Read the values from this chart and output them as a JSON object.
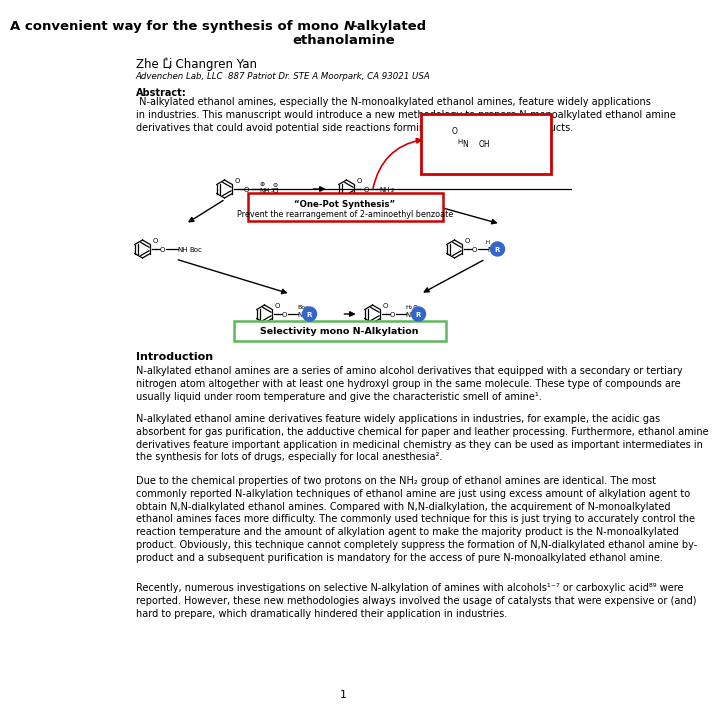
{
  "bg_color": "#ffffff",
  "text_color": "#000000",
  "title1": "A convenient way for the synthesis of mono ",
  "title1_italic": "N",
  "title1_rest": "-alkylated",
  "title2": "ethanolamine",
  "author_pre": "Zhe Li",
  "author_star": "*",
  "author_post": ", Changren Yan",
  "affiliation": "Advenchen Lab, LLC  887 Patriot Dr. STE A Moorpark, CA 93021 USA",
  "abstract_bold": "Abstract:",
  "abstract_text": " N-alkylated ethanol amines, especially the N-monoalkylated ethanol amines, feature widely applications in industries. This manuscript would introduce a new methodology to prepare N-monoalkylated ethanol amine derivatives that could avoid potential side reactions forming N,N-dialkylated by-products.",
  "intro_heading": "Introduction",
  "intro_p1": "N-alkylated ethanol amines are a series of amino alcohol derivatives that equipped with a secondary or tertiary nitrogen atom altogether with at least one hydroxyl group in the same molecule. These type of compounds are usually liquid under room temperature and give the characteristic smell of amine¹.",
  "intro_p2": "N-alkylated ethanol amine derivatives feature widely applications in industries, for example, the acidic gas absorbent for gas purification, the adductive chemical for paper and leather processing. Furthermore, ethanol amine derivatives feature important application in medicinal chemistry as they can be used as important intermediates in the synthesis for lots of drugs, especially for local anesthesia².",
  "intro_p3": "Due to the chemical properties of two protons on the NH₂ group of ethanol amines are identical. The most commonly reported N-alkylation techniques of ethanol amine are just using excess amount of alkylation agent to obtain N,N-dialkylated ethanol amines. Compared with N,N-dialkylation, the acquirement of N-monoalkylated ethanol amines faces more difficulty. The commonly used technique for this is just trying to accurately control the reaction temperature and the amount of alkylation agent to make the majority product is the N-monoalkylated product. Obviously, this technique cannot completely suppress the formation of N,N-dialkylated ethanol amine by-product and a subsequent purification is mandatory for the access of pure N-monoalkylated ethanol amine.",
  "intro_p4": "Recently, numerous investigations on selective N-alkylation of amines with alcohols¹⁻⁷ or carboxylic acid⁸⁹ were reported. However, these new methodologies always involved the usage of catalysts that were expensive or (and) hard to prepare, which dramatically hindered their application in industries.",
  "page_num": "1",
  "red_box_color": "#cc0000",
  "green_box_color": "#5cb85c",
  "blue_circle_color": "#3366cc",
  "onepot_line1": "“One-Pot Synthesis”",
  "onepot_line2": "Prevent the rearrangement of 2-aminoethyl benzoate",
  "selectivity_label": "Selectivity mono N-Alkylation"
}
